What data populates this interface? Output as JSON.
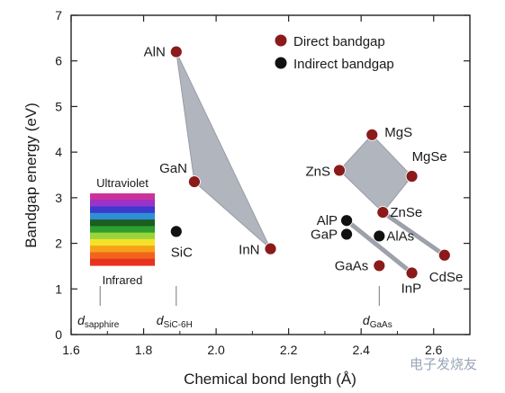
{
  "chart_data": {
    "type": "scatter",
    "title": "",
    "xlabel": "Chemical bond length (Å)",
    "ylabel": "Bandgap energy (eV)",
    "xlim": [
      1.6,
      2.7
    ],
    "ylim": [
      0,
      7
    ],
    "xticks": [
      "1.6",
      "1.8",
      "2.0",
      "2.2",
      "2.4",
      "2.6"
    ],
    "yticks": [
      "0",
      "1",
      "2",
      "3",
      "4",
      "5",
      "6",
      "7"
    ],
    "grid": false,
    "legend": {
      "position": "top-right",
      "entries": [
        {
          "label": "Direct bandgap",
          "color": "#8b1a1a"
        },
        {
          "label": "Indirect bandgap",
          "color": "#111111"
        }
      ]
    },
    "series": [
      {
        "name": "Direct bandgap",
        "color": "#8b1a1a",
        "points": [
          {
            "label": "AlN",
            "x": 1.89,
            "y": 6.2
          },
          {
            "label": "GaN",
            "x": 1.94,
            "y": 3.35
          },
          {
            "label": "InN",
            "x": 2.15,
            "y": 1.88
          },
          {
            "label": "MgS",
            "x": 2.43,
            "y": 4.38
          },
          {
            "label": "ZnS",
            "x": 2.34,
            "y": 3.6
          },
          {
            "label": "MgSe",
            "x": 2.54,
            "y": 3.47
          },
          {
            "label": "ZnSe",
            "x": 2.46,
            "y": 2.68
          },
          {
            "label": "GaAs",
            "x": 2.45,
            "y": 1.51
          },
          {
            "label": "InP",
            "x": 2.54,
            "y": 1.35
          },
          {
            "label": "CdSe",
            "x": 2.63,
            "y": 1.74
          }
        ]
      },
      {
        "name": "Indirect bandgap",
        "color": "#111111",
        "points": [
          {
            "label": "SiC",
            "x": 1.89,
            "y": 2.26
          },
          {
            "label": "AlP",
            "x": 2.36,
            "y": 2.5
          },
          {
            "label": "GaP",
            "x": 2.36,
            "y": 2.2
          },
          {
            "label": "AlAs",
            "x": 2.45,
            "y": 2.16
          }
        ]
      }
    ],
    "regions": [
      {
        "vertices": [
          "AlN",
          "GaN",
          "InN"
        ],
        "color": "#a9adb8"
      },
      {
        "vertices": [
          "MgS",
          "MgSe",
          "ZnSe",
          "ZnS"
        ],
        "color": "#a9adb8"
      }
    ],
    "connectors": [
      [
        "ZnSe",
        "CdSe"
      ],
      [
        "AlP",
        "InP"
      ]
    ],
    "spectrum": {
      "top_label": "Ultraviolet",
      "bottom_label": "Infrared",
      "colors": [
        "#cc3399",
        "#9933cc",
        "#3a3acc",
        "#2f8fd6",
        "#1b5e20",
        "#2e9e2e",
        "#9bd43a",
        "#f4e22a",
        "#f7a11a",
        "#f0641e",
        "#e8311f"
      ]
    },
    "references": [
      {
        "main": "d",
        "sub": "sapphire",
        "x": 1.68
      },
      {
        "main": "d",
        "sub": "SiC-6H",
        "x": 1.89
      },
      {
        "main": "d",
        "sub": "GaAs",
        "x": 2.45
      }
    ]
  },
  "watermark": "电子发烧友"
}
